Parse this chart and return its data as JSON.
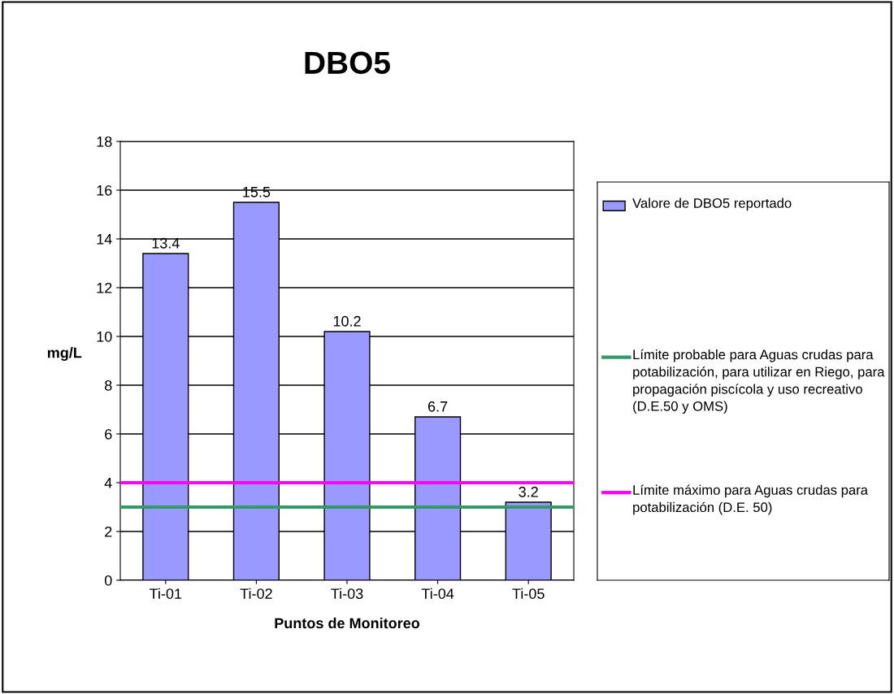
{
  "chart_data": {
    "type": "bar",
    "title": "DBO5",
    "xlabel": "Puntos de Monitoreo",
    "ylabel": "mg/L",
    "categories": [
      "Ti-01",
      "Ti-02",
      "Ti-03",
      "Ti-04",
      "Ti-05"
    ],
    "series": [
      {
        "name": "Valore de DBO5 reportado",
        "color": "#9999ff",
        "values": [
          13.4,
          15.5,
          10.2,
          6.7,
          3.2
        ]
      }
    ],
    "ref_lines": [
      {
        "axis": "y",
        "value": 3,
        "label": "Límite probable para Aguas crudas para potabilización, para utilizar en Riego, para propagación piscícola y uso recreativo (D.E.50 y OMS)",
        "color": "#339966"
      },
      {
        "axis": "y",
        "value": 4,
        "label": "Límite máximo para Aguas crudas para potabilización (D.E. 50)",
        "color": "#ff00ff"
      }
    ],
    "ylim": [
      0,
      18
    ],
    "yticks": [
      0,
      2,
      4,
      6,
      8,
      10,
      12,
      14,
      16,
      18
    ],
    "grid": "y",
    "legend": "right",
    "data_labels": true
  }
}
